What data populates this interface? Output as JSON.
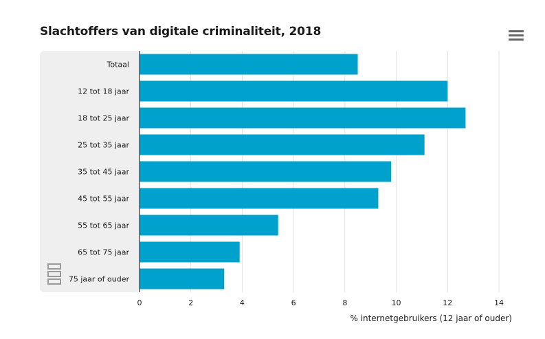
{
  "page": {
    "title": "Slachtoffers van digitale criminaliteit, 2018",
    "menu_icon": "hamburger-menu-icon",
    "logo_icon": "cbs-logo-icon"
  },
  "chart_data": {
    "type": "bar",
    "orientation": "horizontal",
    "title": "Slachtoffers van digitale criminaliteit, 2018",
    "categories": [
      "Totaal",
      "12 tot 18 jaar",
      "18 tot 25 jaar",
      "25 tot 35 jaar",
      "35 tot 45 jaar",
      "45 tot 55 jaar",
      "55 tot 65 jaar",
      "65 tot 75 jaar",
      "75 jaar of ouder"
    ],
    "values": [
      8.5,
      12.0,
      12.7,
      11.1,
      9.8,
      9.3,
      5.4,
      3.9,
      3.3
    ],
    "xlabel": "% internetgebruikers (12 jaar of ouder)",
    "xlim": [
      0,
      14
    ],
    "xticks": [
      0,
      2,
      4,
      6,
      8,
      10,
      12,
      14
    ],
    "grid": true,
    "bar_color": "#00a1cd",
    "grid_color": "#e2e2e2",
    "category_panel_color": "#efefef"
  }
}
